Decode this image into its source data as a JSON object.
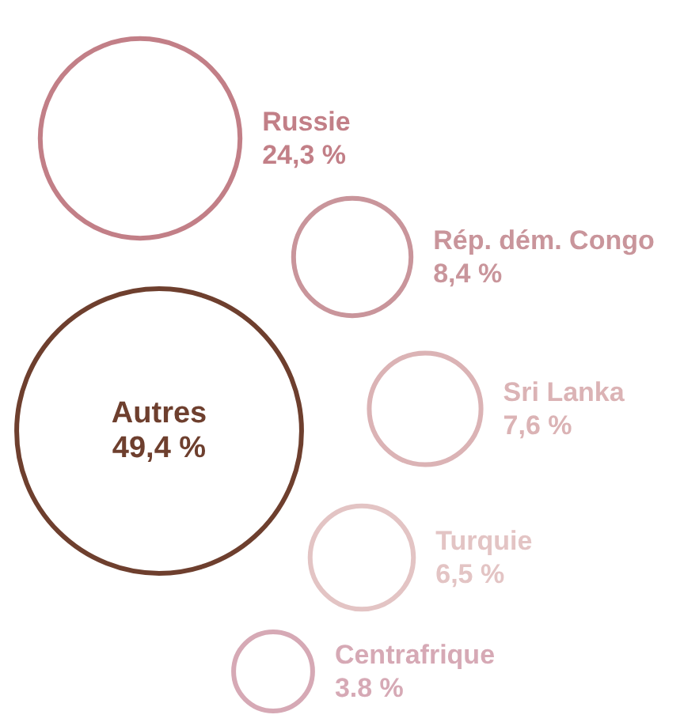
{
  "chart_data": {
    "type": "other",
    "categories": [
      "Russie",
      "Rép. dém. Congo",
      "Sri Lanka",
      "Turquie",
      "Centrafrique",
      "Autres"
    ],
    "values": [
      24.3,
      8.4,
      7.6,
      6.5,
      3.8,
      49.4
    ],
    "value_labels": [
      "24,3 %",
      "8,4 %",
      "7,6 %",
      "6,5 %",
      "3.8 %",
      "49,4 %"
    ],
    "colors": [
      "#c27f87",
      "#c9959b",
      "#dbb3b5",
      "#e3c4c4",
      "#d6a9b5",
      "#6e3f2e"
    ]
  }
}
